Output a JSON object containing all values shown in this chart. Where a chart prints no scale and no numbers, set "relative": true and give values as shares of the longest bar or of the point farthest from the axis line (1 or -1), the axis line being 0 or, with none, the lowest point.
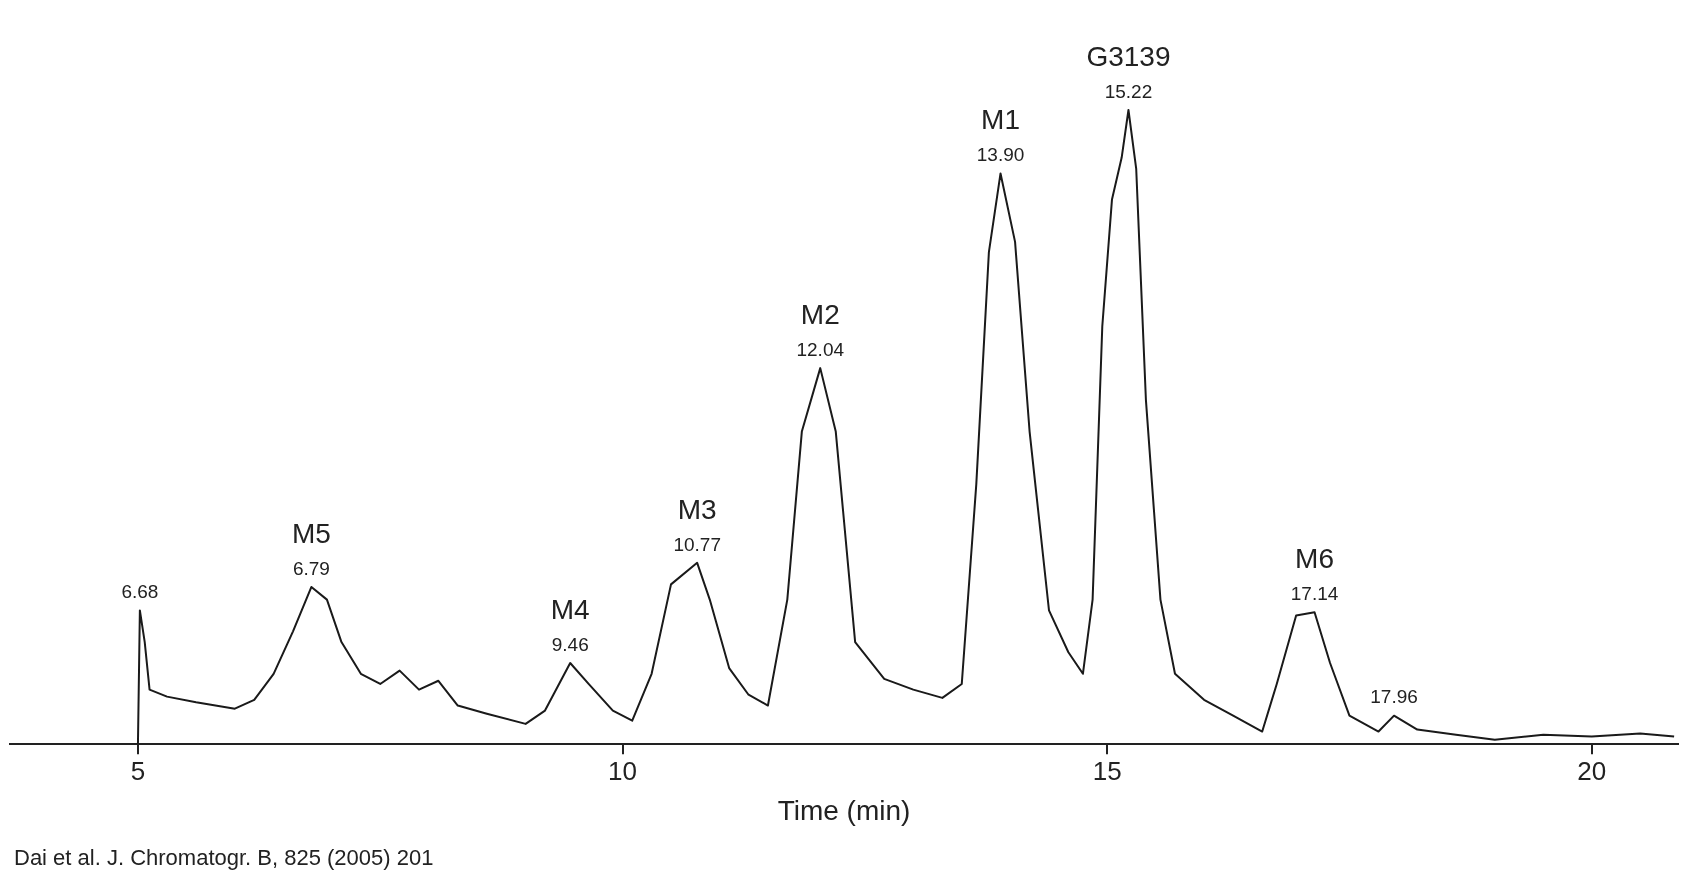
{
  "chart_data": {
    "type": "line",
    "relative": true,
    "xlabel": "Time (min)",
    "xlim": [
      3.68,
      20.89
    ],
    "xticks": [
      5,
      10,
      15,
      20
    ],
    "grid": false,
    "legend": false,
    "marker": "none",
    "line_style": "solid",
    "x": [
      5.0,
      5.02,
      5.07,
      5.12,
      5.3,
      5.6,
      6.0,
      6.2,
      6.4,
      6.6,
      6.79,
      6.95,
      7.1,
      7.3,
      7.5,
      7.7,
      7.9,
      8.1,
      8.3,
      8.6,
      9.0,
      9.2,
      9.46,
      9.65,
      9.9,
      10.1,
      10.3,
      10.5,
      10.77,
      10.9,
      11.1,
      11.3,
      11.5,
      11.7,
      11.85,
      12.04,
      12.2,
      12.4,
      12.7,
      13.0,
      13.3,
      13.5,
      13.65,
      13.78,
      13.9,
      14.05,
      14.2,
      14.4,
      14.6,
      14.75,
      14.85,
      14.95,
      15.05,
      15.15,
      15.22,
      15.3,
      15.4,
      15.55,
      15.7,
      16.0,
      16.3,
      16.6,
      16.75,
      16.95,
      17.14,
      17.3,
      17.5,
      17.8,
      17.96,
      18.2,
      18.6,
      19.0,
      19.5,
      20.0,
      20.5,
      20.85
    ],
    "series": [
      {
        "color": "#1a1a1a",
        "values": [
          0,
          0.211,
          0.161,
          0.086,
          0.075,
          0.066,
          0.056,
          0.07,
          0.111,
          0.178,
          0.248,
          0.228,
          0.161,
          0.111,
          0.095,
          0.116,
          0.086,
          0.1,
          0.061,
          0.048,
          0.032,
          0.053,
          0.128,
          0.095,
          0.053,
          0.037,
          0.111,
          0.252,
          0.286,
          0.228,
          0.12,
          0.078,
          0.061,
          0.228,
          0.493,
          0.593,
          0.493,
          0.161,
          0.103,
          0.086,
          0.073,
          0.095,
          0.41,
          0.776,
          0.9,
          0.792,
          0.493,
          0.211,
          0.145,
          0.111,
          0.228,
          0.659,
          0.859,
          0.925,
          1.0,
          0.907,
          0.543,
          0.228,
          0.111,
          0.07,
          0.045,
          0.02,
          0.095,
          0.203,
          0.208,
          0.128,
          0.045,
          0.02,
          0.045,
          0.023,
          0.015,
          0.007,
          0.015,
          0.012,
          0.017,
          0.012
        ]
      }
    ],
    "annotations": [
      {
        "text": "6.68",
        "x": 5.02,
        "y": 0.211
      },
      {
        "text": "6.79",
        "x": 6.79,
        "y": 0.248
      },
      {
        "text": "M5",
        "x": 6.79,
        "y": 0.248
      },
      {
        "text": "9.46",
        "x": 9.46,
        "y": 0.128
      },
      {
        "text": "M4",
        "x": 9.46,
        "y": 0.128
      },
      {
        "text": "10.77",
        "x": 10.77,
        "y": 0.286
      },
      {
        "text": "M3",
        "x": 10.77,
        "y": 0.286
      },
      {
        "text": "12.04",
        "x": 12.04,
        "y": 0.593
      },
      {
        "text": "M2",
        "x": 12.04,
        "y": 0.593
      },
      {
        "text": "13.90",
        "x": 13.9,
        "y": 0.9
      },
      {
        "text": "M1",
        "x": 13.9,
        "y": 0.9
      },
      {
        "text": "15.22",
        "x": 15.22,
        "y": 1.0
      },
      {
        "text": "G3139",
        "x": 15.22,
        "y": 1.0
      },
      {
        "text": "17.14",
        "x": 17.14,
        "y": 0.208
      },
      {
        "text": "M6",
        "x": 17.14,
        "y": 0.208
      },
      {
        "text": "17.96",
        "x": 17.96,
        "y": 0.045
      },
      "Dai et al. J. Chromatogr. B, 825 (2005) 201"
    ]
  }
}
